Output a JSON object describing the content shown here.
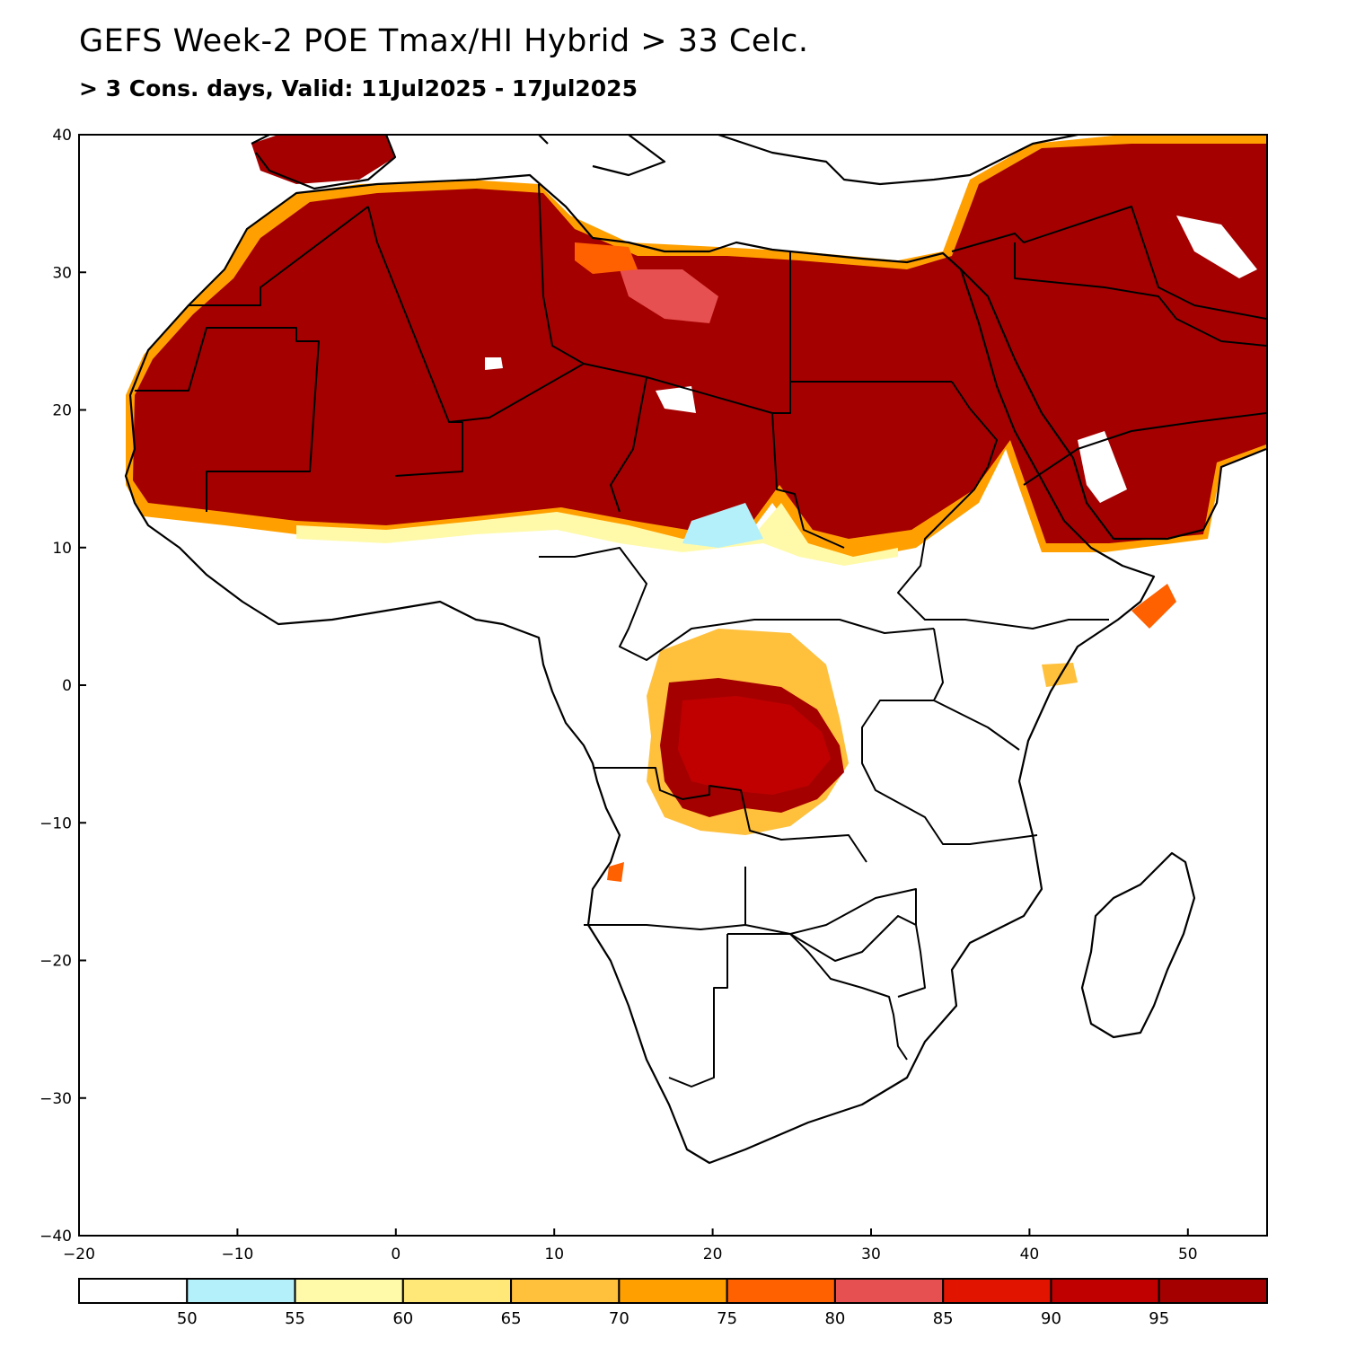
{
  "header": {
    "title": "GEFS Week-2 POE Tmax/HI Hybrid > 33 Celc.",
    "subtitle": "> 3 Cons. days, Valid: 11Jul2025 - 17Jul2025"
  },
  "map": {
    "lon_range": [
      -20,
      55
    ],
    "lat_range": [
      -40,
      40
    ],
    "x_ticks": [
      -20,
      -10,
      0,
      10,
      20,
      30,
      40,
      50
    ],
    "x_tick_labels": [
      "−20",
      "−10",
      "0",
      "10",
      "20",
      "30",
      "40",
      "50"
    ],
    "y_ticks": [
      40,
      30,
      20,
      10,
      0,
      -10,
      -20,
      -30,
      -40
    ],
    "y_tick_labels": [
      "40",
      "30",
      "20",
      "10",
      "0",
      "−10",
      "−20",
      "−30",
      "−40"
    ]
  },
  "colorbar": {
    "colors": [
      "#ffffff",
      "#b4f0fa",
      "#fffaaa",
      "#ffe878",
      "#ffc03c",
      "#ffa000",
      "#ff6000",
      "#e65050",
      "#e11400",
      "#c00000",
      "#a50000"
    ],
    "labels": [
      "50",
      "55",
      "60",
      "65",
      "70",
      "75",
      "80",
      "85",
      "90",
      "95"
    ]
  }
}
